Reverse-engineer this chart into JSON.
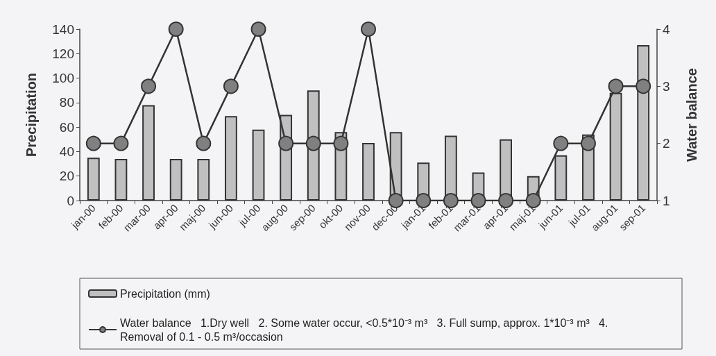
{
  "chart_data": {
    "type": "bar",
    "ylabel": "Precipitation",
    "y2label": "Water balance",
    "categories": [
      "jan-00",
      "feb-00",
      "mar-00",
      "apr-00",
      "maj-00",
      "jun-00",
      "jul-00",
      "aug-00",
      "sep-00",
      "okt-00",
      "nov-00",
      "dec-00",
      "jan-01",
      "feb-01",
      "mar-01",
      "apr-01",
      "maj-01",
      "jun-01",
      "jul-01",
      "aug-01",
      "sep-01"
    ],
    "series": [
      {
        "name": "Precipitation (mm)",
        "color": "#c0c0c0",
        "values": [
          35,
          34,
          78,
          34,
          34,
          69,
          58,
          70,
          90,
          56,
          47,
          56,
          31,
          53,
          23,
          50,
          20,
          37,
          54,
          88,
          127
        ]
      },
      {
        "name": "Water balance   1.Dry well   2. Some water occur, <0.5*10⁻³ m³   3. Full sump, approx. 1*10⁻³ m³   4. Removal of 0.1 - 0.5 m³/occasion",
        "type": "line",
        "axis": "y2",
        "color": "#333333",
        "marker": "circle",
        "values": [
          2,
          2,
          3,
          4,
          2,
          3,
          4,
          2,
          2,
          2,
          4,
          1,
          1,
          1,
          1,
          1,
          1,
          2,
          2,
          3,
          3
        ]
      }
    ],
    "ylim": [
      0,
      140
    ],
    "yticks": [
      0,
      20,
      40,
      60,
      80,
      100,
      120,
      140
    ],
    "y2lim": [
      1,
      4
    ],
    "y2ticks": [
      1,
      2,
      3,
      4
    ],
    "grid": false,
    "legend": "bottom"
  }
}
